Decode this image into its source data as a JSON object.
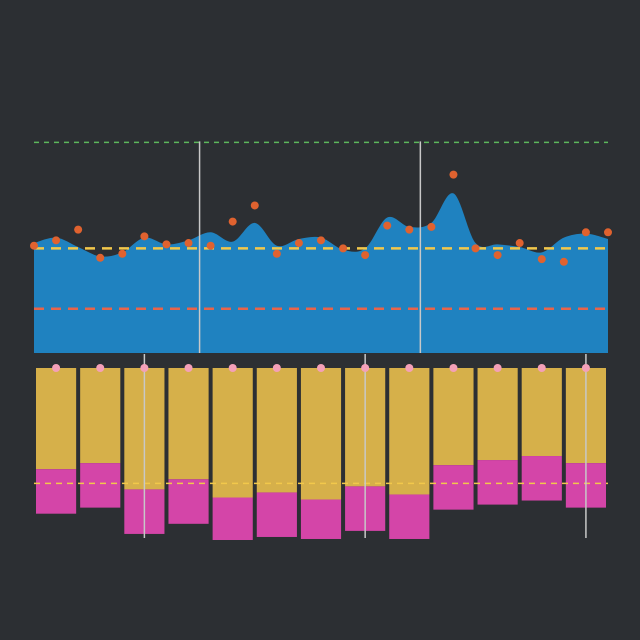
{
  "chart_data": [
    {
      "type": "area",
      "x": [
        1,
        2,
        3,
        4,
        5,
        6,
        7,
        8,
        9,
        10,
        11,
        12,
        13,
        14,
        15,
        16,
        17,
        18,
        19,
        20,
        21,
        22,
        23,
        24,
        25,
        26,
        27
      ],
      "series": [
        {
          "values": [
            82,
            86,
            79,
            72,
            75,
            86,
            81,
            84,
            90,
            83,
            97,
            80,
            85,
            86,
            77,
            78,
            101,
            94,
            97,
            119,
            82,
            81,
            79,
            75,
            86,
            89,
            85
          ],
          "color": "#1f82c0"
        }
      ],
      "points": [
        80,
        84,
        92,
        71,
        74,
        87,
        81,
        82,
        80,
        98,
        110,
        74,
        82,
        84,
        78,
        73,
        95,
        92,
        94,
        133,
        78,
        73,
        82,
        70,
        68,
        90,
        90
      ],
      "point_color": "#e0622f",
      "reference_lines": [
        {
          "value": 157,
          "color": "#5cb85c",
          "style": "dashed"
        },
        {
          "value": 78,
          "color": "#f2c84b",
          "style": "dashed"
        },
        {
          "value": 33,
          "color": "#e8644a",
          "style": "dashed"
        }
      ],
      "vertical_lines_x": [
        8.5,
        18.5
      ],
      "vertical_line_color": "#c8c8c8",
      "ylim": [
        0,
        170
      ],
      "xlim": [
        1,
        27
      ]
    },
    {
      "type": "bar",
      "categories": [
        "1",
        "2",
        "3",
        "4",
        "5",
        "6",
        "7",
        "8",
        "9",
        "10",
        "11",
        "12",
        "13"
      ],
      "series": [
        {
          "values": [
            100,
            94,
            120,
            110,
            128,
            123,
            130,
            117,
            125,
            96,
            91,
            87,
            94
          ],
          "color": "#d6b04a"
        },
        {
          "values": [
            44,
            44,
            44,
            44,
            42,
            44,
            39,
            44,
            44,
            44,
            44,
            44,
            44
          ],
          "color": "#d445a8"
        }
      ],
      "marker_color": "#f4a0b8",
      "reference_lines": [
        {
          "value": 114,
          "color": "#f2c84b",
          "style": "dashed"
        }
      ],
      "vertical_lines_x": [
        2.5,
        7.5,
        12.5
      ],
      "vertical_line_color": "#c8c8c8",
      "ylim": [
        0,
        170
      ],
      "inverted": true
    }
  ]
}
